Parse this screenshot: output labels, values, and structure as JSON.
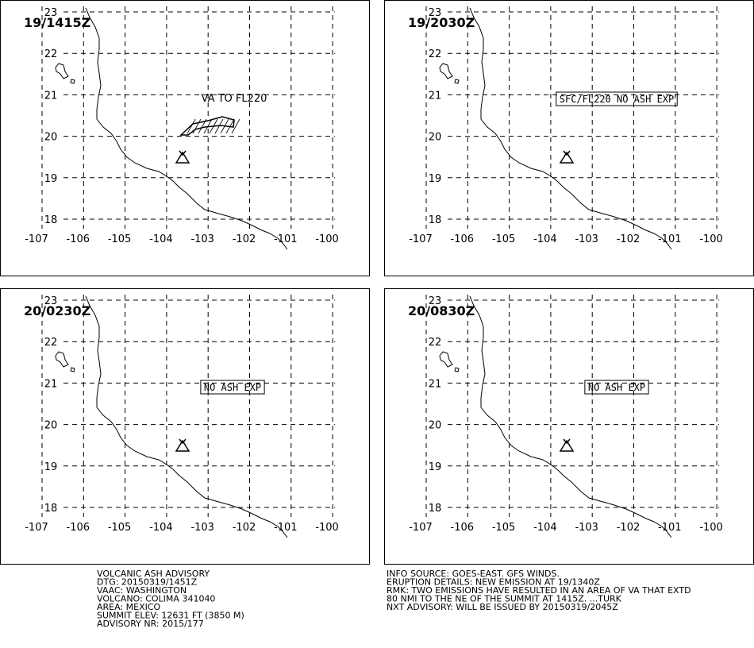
{
  "panels": [
    {
      "time": "19/1415Z",
      "annotation": "VA TO FL220"
    },
    {
      "time": "19/2030Z",
      "annotation": "SFC/FL220 NO ASH EXP"
    },
    {
      "time": "20/0230Z",
      "annotation": "NO ASH EXP"
    },
    {
      "time": "20/0830Z",
      "annotation": "NO ASH EXP"
    }
  ],
  "longitudes": [
    -107,
    -106,
    -105,
    -104,
    -103,
    -102,
    -101,
    -100
  ],
  "latitudes": [
    18,
    19,
    20,
    21,
    22,
    23
  ],
  "footer": {
    "left": [
      "VOLCANIC ASH ADVISORY",
      "DTG: 20150319/1451Z",
      "VAAC: WASHINGTON",
      "VOLCANO: COLIMA 341040",
      "AREA: MEXICO",
      "SUMMIT ELEV: 12631 FT (3850 M)",
      "ADVISORY NR: 2015/177"
    ],
    "right": [
      "INFO SOURCE: GOES-EAST. GFS WINDS.",
      "ERUPTION DETAILS: NEW EMISSION AT 19/1340Z",
      "RMK: TWO EMISSIONS HAVE RESULTED IN AN AREA OF VA THAT EXTD",
      "80 NMI TO THE NE OF THE SUMMIT AT 1415Z. ...TURK",
      "NXT ADVISORY: WILL BE ISSUED BY 20150319/2045Z"
    ]
  }
}
